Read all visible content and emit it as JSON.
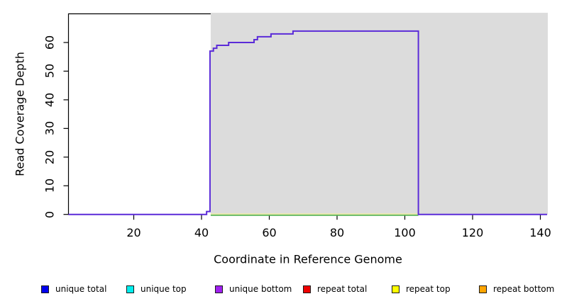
{
  "chart_data": {
    "type": "line",
    "step": true,
    "title": "",
    "xlabel": "Coordinate in Reference Genome",
    "ylabel": "Read Coverage Depth",
    "x_ticks": [
      20,
      40,
      60,
      80,
      100,
      120,
      140
    ],
    "y_ticks": [
      0,
      10,
      20,
      30,
      40,
      50,
      60
    ],
    "xlim": [
      1,
      142
    ],
    "ylim": [
      0,
      70
    ],
    "grid": false,
    "shaded_region": {
      "x_start": 42.5,
      "x_end": 142,
      "fill": "#dcdcdc"
    },
    "line": {
      "name": "unique coverage step line",
      "color": "#5b2bd8",
      "points": [
        [
          1,
          0
        ],
        [
          41.5,
          1
        ],
        [
          42.5,
          57
        ],
        [
          43.5,
          58
        ],
        [
          44.5,
          59
        ],
        [
          48,
          60
        ],
        [
          55.5,
          61
        ],
        [
          56.5,
          62
        ],
        [
          60.5,
          63
        ],
        [
          67,
          64
        ],
        [
          104,
          0
        ]
      ],
      "x_end": 142
    },
    "baseline_overlay": {
      "x_start": 42.5,
      "x_end": 104,
      "value": 0,
      "yellow_color": "#eaea9f",
      "green_color": "#58b358"
    }
  },
  "axes_style": {
    "axis_color": "#000000",
    "tick_length": 7
  },
  "legend": {
    "items": [
      {
        "label": "unique total",
        "color": "#0000ee"
      },
      {
        "label": "unique top",
        "color": "#00eeee"
      },
      {
        "label": "unique bottom",
        "color": "#a020f0"
      },
      {
        "label": "repeat total",
        "color": "#ee0000"
      },
      {
        "label": "repeat top",
        "color": "#ffff00"
      },
      {
        "label": "repeat bottom",
        "color": "#ffa500"
      }
    ]
  }
}
